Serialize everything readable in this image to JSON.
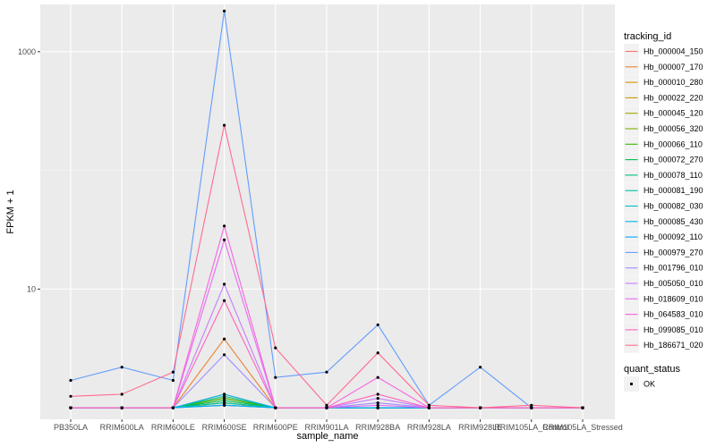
{
  "chart_data": {
    "type": "line",
    "title": "",
    "xlabel": "sample_name",
    "ylabel": "FPKM + 1",
    "y_scale": "log10",
    "ylim": [
      0.8,
      2500
    ],
    "y_ticks": [
      1000,
      10
    ],
    "y_tick_labels": [
      "1000",
      "10"
    ],
    "grid": true,
    "legend_position": "right",
    "categories": [
      "PB350LA",
      "RRIM600LA",
      "RRIM600LE",
      "RRIM600SE",
      "RRIM600PE",
      "RRIM901LA",
      "RRIM928BA",
      "RRIM928LA",
      "RRIM928LE",
      "RRIM105LA_Control",
      "RRIM105LA_Stressed"
    ],
    "legend_title": "tracking_id",
    "series": [
      {
        "name": "Hb_000004_150",
        "color": "#F8766D",
        "values": [
          1,
          1,
          1,
          1.3,
          1,
          1,
          1,
          1,
          1,
          1,
          1
        ]
      },
      {
        "name": "Hb_000007_170",
        "color": "#EA8331",
        "values": [
          1,
          1,
          1,
          3.8,
          1,
          1,
          1,
          1,
          1,
          1,
          1
        ]
      },
      {
        "name": "Hb_000010_280",
        "color": "#D89000",
        "values": [
          1,
          1,
          1,
          1.2,
          1,
          1,
          1,
          1,
          1,
          1,
          1
        ]
      },
      {
        "name": "Hb_000022_220",
        "color": "#C09B00",
        "values": [
          1,
          1,
          1,
          1.1,
          1,
          1,
          1,
          1,
          1,
          1,
          1
        ]
      },
      {
        "name": "Hb_000045_120",
        "color": "#A3A500",
        "values": [
          1,
          1,
          1,
          1.05,
          1,
          1,
          1,
          1,
          1,
          1,
          1
        ]
      },
      {
        "name": "Hb_000056_320",
        "color": "#7CAE00",
        "values": [
          1,
          1,
          1,
          1.1,
          1,
          1,
          1,
          1,
          1,
          1,
          1
        ]
      },
      {
        "name": "Hb_000066_110",
        "color": "#39B600",
        "values": [
          1,
          1,
          1,
          1.2,
          1,
          1,
          1,
          1,
          1,
          1,
          1
        ]
      },
      {
        "name": "Hb_000072_270",
        "color": "#00BB4E",
        "values": [
          1,
          1,
          1,
          1.15,
          1,
          1,
          1,
          1,
          1,
          1,
          1
        ]
      },
      {
        "name": "Hb_000078_110",
        "color": "#00BF7D",
        "values": [
          1,
          1,
          1,
          1.25,
          1,
          1,
          1,
          1,
          1,
          1,
          1
        ]
      },
      {
        "name": "Hb_000081_190",
        "color": "#00C1A3",
        "values": [
          1,
          1,
          1,
          1.1,
          1,
          1,
          1,
          1,
          1,
          1,
          1
        ]
      },
      {
        "name": "Hb_000082_030",
        "color": "#00BFC4",
        "values": [
          1,
          1,
          1,
          1.05,
          1,
          1,
          1,
          1,
          1,
          1,
          1
        ]
      },
      {
        "name": "Hb_000085_430",
        "color": "#00B8E5",
        "values": [
          1,
          1,
          1,
          1.3,
          1,
          1,
          1,
          1,
          1,
          1,
          1
        ]
      },
      {
        "name": "Hb_000092_110",
        "color": "#00A9FF",
        "values": [
          1,
          1,
          1,
          1.05,
          1,
          1,
          1,
          1,
          1,
          1,
          1
        ]
      },
      {
        "name": "Hb_000979_270",
        "color": "#619CFF",
        "values": [
          1.7,
          2.2,
          1.7,
          2200,
          1.8,
          2.0,
          5.0,
          1.05,
          2.2,
          1.0,
          1.0
        ]
      },
      {
        "name": "Hb_001796_010",
        "color": "#9F8CFF",
        "values": [
          1,
          1,
          1,
          2.8,
          1,
          1,
          1.1,
          1,
          1,
          1,
          1
        ]
      },
      {
        "name": "Hb_005050_010",
        "color": "#C77CFF",
        "values": [
          1,
          1,
          1,
          11,
          1,
          1,
          1.2,
          1,
          1,
          1,
          1
        ]
      },
      {
        "name": "Hb_018609_010",
        "color": "#E76BF3",
        "values": [
          1,
          1,
          1,
          26,
          1,
          1,
          1.05,
          1,
          1,
          1,
          1
        ]
      },
      {
        "name": "Hb_064583_010",
        "color": "#F763E0",
        "values": [
          1,
          1,
          1,
          34,
          1,
          1,
          1.8,
          1,
          1,
          1,
          1
        ]
      },
      {
        "name": "Hb_099085_010",
        "color": "#FF62BC",
        "values": [
          1,
          1,
          1,
          8,
          1,
          1,
          1.3,
          1,
          1,
          1,
          1
        ]
      },
      {
        "name": "Hb_186671_020",
        "color": "#FF6C91",
        "values": [
          1.25,
          1.3,
          2.0,
          240,
          3.2,
          1.05,
          2.9,
          1.05,
          1.0,
          1.05,
          1.0
        ]
      }
    ]
  },
  "legend2": {
    "title": "quant_status",
    "items": [
      {
        "label": "OK"
      }
    ]
  }
}
